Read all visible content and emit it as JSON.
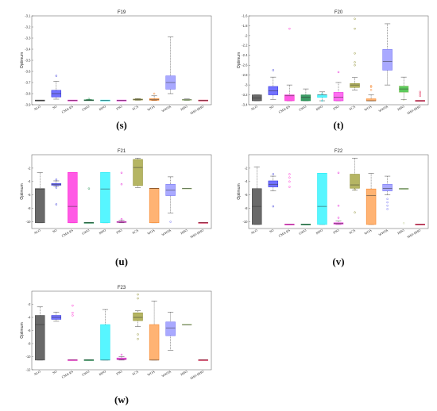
{
  "chart_data": [
    {
      "type": "box",
      "title": "F19",
      "caption": "(s)",
      "ylabel": "Optimum",
      "ylim": [
        -3.9,
        -3.1
      ],
      "yticks": [
        -3.1,
        -3.2,
        -3.3,
        -3.4,
        -3.5,
        -3.6,
        -3.7,
        -3.8,
        -3.9
      ],
      "categories": [
        "ALO",
        "SO",
        "CMA-ES",
        "GWO",
        "MFO",
        "PSO",
        "SCA",
        "WOA",
        "WWPA",
        "HHO",
        "SHO-HHO"
      ],
      "series": [
        {
          "name": "ALO",
          "min": -3.862,
          "q1": -3.862,
          "median": -3.862,
          "q3": -3.862,
          "max": -3.862,
          "outliers": []
        },
        {
          "name": "SO",
          "min": -3.85,
          "q1": -3.83,
          "median": -3.8,
          "q3": -3.77,
          "max": -3.69,
          "outliers": [
            -3.64
          ]
        },
        {
          "name": "CMA-ES",
          "min": -3.862,
          "q1": -3.862,
          "median": -3.862,
          "q3": -3.862,
          "max": -3.862,
          "outliers": []
        },
        {
          "name": "GWO",
          "min": -3.862,
          "q1": -3.861,
          "median": -3.86,
          "q3": -3.858,
          "max": -3.853,
          "outliers": [
            -3.848
          ]
        },
        {
          "name": "MFO",
          "min": -3.862,
          "q1": -3.862,
          "median": -3.862,
          "q3": -3.862,
          "max": -3.862,
          "outliers": []
        },
        {
          "name": "PSO",
          "min": -3.862,
          "q1": -3.862,
          "median": -3.862,
          "q3": -3.862,
          "max": -3.862,
          "outliers": []
        },
        {
          "name": "SCA",
          "min": -3.86,
          "q1": -3.857,
          "median": -3.853,
          "q3": -3.85,
          "max": -3.845,
          "outliers": []
        },
        {
          "name": "WOA",
          "min": -3.862,
          "q1": -3.86,
          "median": -3.855,
          "q3": -3.845,
          "max": -3.82,
          "outliers": [
            -3.8
          ]
        },
        {
          "name": "WWPA",
          "min": -3.8,
          "q1": -3.76,
          "median": -3.7,
          "q3": -3.64,
          "max": -3.29,
          "outliers": []
        },
        {
          "name": "HHO",
          "min": -3.862,
          "q1": -3.86,
          "median": -3.856,
          "q3": -3.852,
          "max": -3.848,
          "outliers": []
        },
        {
          "name": "SHO-HHO",
          "min": -3.862,
          "q1": -3.862,
          "median": -3.862,
          "q3": -3.862,
          "max": -3.862,
          "outliers": []
        }
      ]
    },
    {
      "type": "box",
      "title": "F20",
      "caption": "(t)",
      "ylabel": "Optimum",
      "ylim": [
        -3.4,
        -1.6
      ],
      "yticks": [
        -1.6,
        -1.8,
        -2,
        -2.2,
        -2.4,
        -2.6,
        -2.8,
        -3,
        -3.2,
        -3.4
      ],
      "categories": [
        "ALO",
        "SO",
        "CMA-ES",
        "GWO",
        "MFO",
        "PSO",
        "SCA",
        "WOA",
        "WWPA",
        "HHO",
        "SHO-HHO"
      ],
      "series": [
        {
          "name": "ALO",
          "min": -3.32,
          "q1": -3.32,
          "median": -3.26,
          "q3": -3.2,
          "max": -3.2,
          "outliers": []
        },
        {
          "name": "SO",
          "min": -3.3,
          "q1": -3.2,
          "median": -3.12,
          "q3": -3.03,
          "max": -2.84,
          "outliers": [
            -2.7
          ]
        },
        {
          "name": "CMA-ES",
          "min": -3.32,
          "q1": -3.32,
          "median": -3.22,
          "q3": -3.2,
          "max": -3.0,
          "outliers": [
            -1.86
          ]
        },
        {
          "name": "GWO",
          "min": -3.32,
          "q1": -3.32,
          "median": -3.25,
          "q3": -3.2,
          "max": -3.08,
          "outliers": []
        },
        {
          "name": "MFO",
          "min": -3.32,
          "q1": -3.25,
          "median": -3.2,
          "q3": -3.2,
          "max": -3.14,
          "outliers": [
            -3.32,
            -3.18
          ]
        },
        {
          "name": "PSO",
          "min": -3.32,
          "q1": -3.32,
          "median": -3.25,
          "q3": -3.15,
          "max": -2.95,
          "outliers": [
            -2.74
          ]
        },
        {
          "name": "SCA",
          "min": -3.1,
          "q1": -3.05,
          "median": -3.0,
          "q3": -2.97,
          "max": -2.85,
          "outliers": [
            -2.6,
            -2.54,
            -2.36,
            -1.86,
            -1.66
          ]
        },
        {
          "name": "WOA",
          "min": -3.32,
          "q1": -3.32,
          "median": -3.32,
          "q3": -3.28,
          "max": -3.2,
          "outliers": [
            -3.1,
            -3.04,
            -3.02
          ]
        },
        {
          "name": "WWPA",
          "min": -3.0,
          "q1": -2.7,
          "median": -2.52,
          "q3": -2.28,
          "max": -1.76,
          "outliers": []
        },
        {
          "name": "HHO",
          "min": -3.3,
          "q1": -3.15,
          "median": -3.08,
          "q3": -3.02,
          "max": -2.84,
          "outliers": [
            -3.3
          ]
        },
        {
          "name": "SHO-HHO",
          "min": -3.322,
          "q1": -3.322,
          "median": -3.32,
          "q3": -3.32,
          "max": -3.32,
          "outliers": [
            -3.22,
            -3.18,
            -3.14
          ]
        }
      ]
    },
    {
      "type": "box",
      "title": "F21",
      "caption": "(u)",
      "ylabel": "Optimum",
      "ylim": [
        -11,
        0
      ],
      "yticks": [
        -2,
        -4,
        -6,
        -8,
        -10
      ],
      "categories": [
        "ALO",
        "SO",
        "CMA-ES",
        "GWO",
        "MFO",
        "PSO",
        "SCA",
        "WOA",
        "WWPA",
        "HHO",
        "SHO-HHO"
      ],
      "series": [
        {
          "name": "ALO",
          "min": -10.15,
          "q1": -10.15,
          "median": -5.1,
          "q3": -5.05,
          "max": -2.68,
          "outliers": []
        },
        {
          "name": "SO",
          "min": -4.7,
          "q1": -4.55,
          "median": -4.4,
          "q3": -4.3,
          "max": -3.9,
          "outliers": [
            -7.4,
            -4.9,
            -3.7
          ]
        },
        {
          "name": "CMA-ES",
          "min": -10.15,
          "q1": -10.15,
          "median": -7.7,
          "q3": -2.63,
          "max": -2.63,
          "outliers": []
        },
        {
          "name": "GWO",
          "min": -10.15,
          "q1": -10.15,
          "median": -10.15,
          "q3": -10.15,
          "max": -10.15,
          "outliers": [
            -5.05
          ]
        },
        {
          "name": "MFO",
          "min": -10.15,
          "q1": -10.15,
          "median": -5.1,
          "q3": -2.63,
          "max": -2.63,
          "outliers": []
        },
        {
          "name": "PSO",
          "min": -10.15,
          "q1": -10.1,
          "median": -10.05,
          "q3": -9.95,
          "max": -9.8,
          "outliers": [
            -9.6,
            -4.4,
            -2.7
          ]
        },
        {
          "name": "SCA",
          "min": -4.9,
          "q1": -4.6,
          "median": -1.9,
          "q3": -0.7,
          "max": -0.5,
          "outliers": []
        },
        {
          "name": "WOA",
          "min": -10.15,
          "q1": -10.15,
          "median": -5.05,
          "q3": -5.0,
          "max": -5.0,
          "outliers": []
        },
        {
          "name": "WWPA",
          "min": -8.7,
          "q1": -6.1,
          "median": -5.3,
          "q3": -4.4,
          "max": -3.3,
          "outliers": [
            -10.0
          ]
        },
        {
          "name": "HHO",
          "min": -5.06,
          "q1": -5.06,
          "median": -5.05,
          "q3": -5.04,
          "max": -5.04,
          "outliers": []
        },
        {
          "name": "SHO-HHO",
          "min": -10.15,
          "q1": -10.15,
          "median": -10.15,
          "q3": -10.15,
          "max": -10.15,
          "outliers": []
        }
      ]
    },
    {
      "type": "box",
      "title": "F22",
      "caption": "(v)",
      "ylabel": "Optimum",
      "ylim": [
        -11,
        0
      ],
      "yticks": [
        -2,
        -4,
        -6,
        -8,
        -10
      ],
      "categories": [
        "ALO",
        "SO",
        "CMA-ES",
        "GWO",
        "MFO",
        "PSO",
        "SCA",
        "WOA",
        "WWPA",
        "HHO",
        "SHO-HHO"
      ],
      "series": [
        {
          "name": "ALO",
          "min": -10.4,
          "q1": -10.4,
          "median": -7.7,
          "q3": -5.05,
          "max": -1.8,
          "outliers": []
        },
        {
          "name": "SO",
          "min": -5.4,
          "q1": -4.8,
          "median": -4.4,
          "q3": -3.9,
          "max": -3.2,
          "outliers": [
            -7.7,
            -2.9
          ]
        },
        {
          "name": "CMA-ES",
          "min": -10.4,
          "q1": -10.4,
          "median": -10.4,
          "q3": -10.4,
          "max": -10.4,
          "outliers": [
            -4.8,
            -4.0,
            -3.4,
            -2.9
          ]
        },
        {
          "name": "GWO",
          "min": -10.4,
          "q1": -10.4,
          "median": -10.4,
          "q3": -10.4,
          "max": -10.4,
          "outliers": []
        },
        {
          "name": "MFO",
          "min": -10.4,
          "q1": -10.4,
          "median": -7.7,
          "q3": -2.75,
          "max": -2.75,
          "outliers": []
        },
        {
          "name": "PSO",
          "min": -10.4,
          "q1": -10.35,
          "median": -10.25,
          "q3": -10.15,
          "max": -9.9,
          "outliers": [
            -9.4,
            -7.6,
            -2.7
          ]
        },
        {
          "name": "SCA",
          "min": -5.3,
          "q1": -5.0,
          "median": -4.5,
          "q3": -2.9,
          "max": -0.5,
          "outliers": [
            -8.6,
            -5.2
          ]
        },
        {
          "name": "WOA",
          "min": -10.4,
          "q1": -10.4,
          "median": -6.1,
          "q3": -5.1,
          "max": -2.8,
          "outliers": []
        },
        {
          "name": "WWPA",
          "min": -6.0,
          "q1": -5.4,
          "median": -5.0,
          "q3": -4.4,
          "max": -3.2,
          "outliers": [
            -8.1,
            -7.6,
            -7.1,
            -6.6
          ]
        },
        {
          "name": "HHO",
          "min": -5.1,
          "q1": -5.1,
          "median": -5.08,
          "q3": -5.07,
          "max": -5.07,
          "outliers": [
            -10.2
          ]
        },
        {
          "name": "SHO-HHO",
          "min": -10.4,
          "q1": -10.4,
          "median": -10.4,
          "q3": -10.4,
          "max": -10.4,
          "outliers": []
        }
      ]
    },
    {
      "type": "box",
      "title": "F23",
      "caption": "(w)",
      "ylabel": "Optimum",
      "ylim": [
        -12,
        0
      ],
      "yticks": [
        -2,
        -4,
        -6,
        -8,
        -10,
        -12
      ],
      "categories": [
        "ALO",
        "SO",
        "CMA-ES",
        "GWO",
        "MFO",
        "PSO",
        "SCA",
        "WOA",
        "WWPA",
        "HHO",
        "SHO-HHO"
      ],
      "series": [
        {
          "name": "ALO",
          "min": -10.53,
          "q1": -10.53,
          "median": -5.1,
          "q3": -3.7,
          "max": -2.4,
          "outliers": []
        },
        {
          "name": "SO",
          "min": -4.6,
          "q1": -4.3,
          "median": -4.0,
          "q3": -3.7,
          "max": -3.2,
          "outliers": []
        },
        {
          "name": "CMA-ES",
          "min": -10.53,
          "q1": -10.53,
          "median": -10.53,
          "q3": -10.53,
          "max": -10.53,
          "outliers": [
            -3.7,
            -3.3,
            -2.2
          ]
        },
        {
          "name": "GWO",
          "min": -10.53,
          "q1": -10.53,
          "median": -10.53,
          "q3": -10.53,
          "max": -10.53,
          "outliers": []
        },
        {
          "name": "MFO",
          "min": -10.53,
          "q1": -10.53,
          "median": -10.53,
          "q3": -5.1,
          "max": -2.8,
          "outliers": []
        },
        {
          "name": "PSO",
          "min": -10.53,
          "q1": -10.45,
          "median": -10.35,
          "q3": -10.2,
          "max": -10.0,
          "outliers": [
            -9.7
          ]
        },
        {
          "name": "SCA",
          "min": -5.4,
          "q1": -4.5,
          "median": -4.0,
          "q3": -3.3,
          "max": -3.0,
          "outliers": [
            -7.3,
            -6.6,
            -1.1,
            -0.5
          ]
        },
        {
          "name": "WOA",
          "min": -10.53,
          "q1": -10.53,
          "median": -10.53,
          "q3": -5.1,
          "max": -1.5,
          "outliers": []
        },
        {
          "name": "WWPA",
          "min": -9.0,
          "q1": -6.8,
          "median": -5.6,
          "q3": -4.7,
          "max": -3.2,
          "outliers": []
        },
        {
          "name": "HHO",
          "min": -5.13,
          "q1": -5.13,
          "median": -5.12,
          "q3": -5.1,
          "max": -5.1,
          "outliers": []
        },
        {
          "name": "SHO-HHO",
          "min": -10.53,
          "q1": -10.53,
          "median": -10.53,
          "q3": -10.53,
          "max": -10.53,
          "outliers": []
        }
      ]
    }
  ],
  "colors": {
    "ALO": "#3d3d3d",
    "SO": "#2e2ed6",
    "CMA-ES": "#ff1fd0",
    "GWO": "#1a8a4a",
    "MFO": "#1ee8f0",
    "PSO": "#e61ad6",
    "SCA": "#8a8a2a",
    "WOA": "#f57d1c",
    "WWPA": "#6b6bf0",
    "HHO": "#c8d4a0",
    "SHO-HHO": "#e01a4a"
  },
  "box_fill": {
    "ALO": "#4f4f4f",
    "SO": "#5a5aff",
    "CMA-ES": "#ff3de0",
    "GWO": "#1a8a4a",
    "MFO": "#3af5ff",
    "PSO": "#ff55ef",
    "SCA": "#a8a848",
    "WOA": "#ffa65a",
    "WWPA": "#9a9aff",
    "HHO": "#3fbf3f",
    "SHO-HHO": "#ff3a6a"
  }
}
